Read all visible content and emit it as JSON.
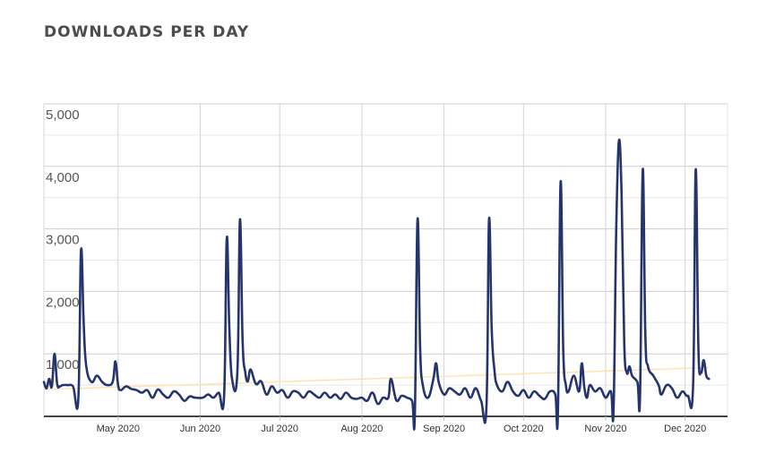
{
  "chart_data": {
    "type": "line",
    "title": "DOWNLOADS PER DAY",
    "xlabel": "",
    "ylabel": "",
    "ylim": [
      0,
      5000
    ],
    "yticks": [
      {
        "value": 1000,
        "label": "1,000"
      },
      {
        "value": 2000,
        "label": "2,000"
      },
      {
        "value": 3000,
        "label": "3,000"
      },
      {
        "value": 4000,
        "label": "4,000"
      },
      {
        "value": 5000,
        "label": "5,000"
      }
    ],
    "xrange": [
      "2020-04-03",
      "2020-12-17"
    ],
    "xticks": [
      {
        "date": "2020-05-01",
        "label": "May 2020"
      },
      {
        "date": "2020-06-01",
        "label": "Jun 2020"
      },
      {
        "date": "2020-07-01",
        "label": "Jul 2020"
      },
      {
        "date": "2020-08-01",
        "label": "Aug 2020"
      },
      {
        "date": "2020-09-01",
        "label": "Sep 2020"
      },
      {
        "date": "2020-10-01",
        "label": "Oct 2020"
      },
      {
        "date": "2020-11-01",
        "label": "Nov 2020"
      },
      {
        "date": "2020-12-01",
        "label": "Dec 2020"
      }
    ],
    "grid": true,
    "colors": {
      "series": "#26346e",
      "trend": "#fde3b0",
      "grid": "#d4d4d4",
      "axis": "#444444"
    },
    "series": [
      {
        "values": [
          [
            "2020-04-03",
            550
          ],
          [
            "2020-04-04",
            450
          ],
          [
            "2020-04-05",
            600
          ],
          [
            "2020-04-06",
            480
          ],
          [
            "2020-04-07",
            1000
          ],
          [
            "2020-04-08",
            520
          ],
          [
            "2020-04-09",
            480
          ],
          [
            "2020-04-10",
            500
          ],
          [
            "2020-04-12",
            500
          ],
          [
            "2020-04-14",
            480
          ],
          [
            "2020-04-16",
            280
          ],
          [
            "2020-04-17",
            2650
          ],
          [
            "2020-04-18",
            1500
          ],
          [
            "2020-04-19",
            800
          ],
          [
            "2020-04-21",
            550
          ],
          [
            "2020-04-23",
            650
          ],
          [
            "2020-04-25",
            550
          ],
          [
            "2020-04-27",
            500
          ],
          [
            "2020-04-29",
            560
          ],
          [
            "2020-04-30",
            880
          ],
          [
            "2020-05-01",
            500
          ],
          [
            "2020-05-02",
            420
          ],
          [
            "2020-05-04",
            480
          ],
          [
            "2020-05-06",
            440
          ],
          [
            "2020-05-08",
            420
          ],
          [
            "2020-05-10",
            380
          ],
          [
            "2020-05-12",
            420
          ],
          [
            "2020-05-14",
            300
          ],
          [
            "2020-05-16",
            430
          ],
          [
            "2020-05-18",
            350
          ],
          [
            "2020-05-20",
            300
          ],
          [
            "2020-05-22",
            400
          ],
          [
            "2020-05-24",
            350
          ],
          [
            "2020-05-26",
            250
          ],
          [
            "2020-05-28",
            320
          ],
          [
            "2020-05-30",
            300
          ],
          [
            "2020-06-02",
            300
          ],
          [
            "2020-06-04",
            350
          ],
          [
            "2020-06-06",
            300
          ],
          [
            "2020-06-08",
            380
          ],
          [
            "2020-06-10",
            320
          ],
          [
            "2020-06-11",
            2850
          ],
          [
            "2020-06-12",
            1400
          ],
          [
            "2020-06-13",
            600
          ],
          [
            "2020-06-15",
            700
          ],
          [
            "2020-06-16",
            3150
          ],
          [
            "2020-06-17",
            1200
          ],
          [
            "2020-06-18",
            700
          ],
          [
            "2020-06-19",
            560
          ],
          [
            "2020-06-20",
            750
          ],
          [
            "2020-06-22",
            520
          ],
          [
            "2020-06-24",
            560
          ],
          [
            "2020-06-26",
            350
          ],
          [
            "2020-06-28",
            480
          ],
          [
            "2020-06-30",
            380
          ],
          [
            "2020-07-02",
            420
          ],
          [
            "2020-07-04",
            300
          ],
          [
            "2020-07-06",
            400
          ],
          [
            "2020-07-08",
            380
          ],
          [
            "2020-07-10",
            300
          ],
          [
            "2020-07-12",
            400
          ],
          [
            "2020-07-14",
            350
          ],
          [
            "2020-07-16",
            300
          ],
          [
            "2020-07-18",
            380
          ],
          [
            "2020-07-20",
            300
          ],
          [
            "2020-07-22",
            350
          ],
          [
            "2020-07-24",
            280
          ],
          [
            "2020-07-26",
            380
          ],
          [
            "2020-07-28",
            300
          ],
          [
            "2020-07-30",
            280
          ],
          [
            "2020-08-01",
            300
          ],
          [
            "2020-08-03",
            250
          ],
          [
            "2020-08-05",
            380
          ],
          [
            "2020-08-07",
            200
          ],
          [
            "2020-08-09",
            300
          ],
          [
            "2020-08-11",
            300
          ],
          [
            "2020-08-12",
            600
          ],
          [
            "2020-08-14",
            260
          ],
          [
            "2020-08-16",
            330
          ],
          [
            "2020-08-18",
            300
          ],
          [
            "2020-08-20",
            240
          ],
          [
            "2020-08-21",
            10
          ],
          [
            "2020-08-22",
            3150
          ],
          [
            "2020-08-23",
            1100
          ],
          [
            "2020-08-24",
            500
          ],
          [
            "2020-08-26",
            300
          ],
          [
            "2020-08-28",
            600
          ],
          [
            "2020-08-29",
            850
          ],
          [
            "2020-08-30",
            550
          ],
          [
            "2020-09-01",
            350
          ],
          [
            "2020-09-03",
            450
          ],
          [
            "2020-09-05",
            400
          ],
          [
            "2020-09-07",
            350
          ],
          [
            "2020-09-09",
            450
          ],
          [
            "2020-09-11",
            300
          ],
          [
            "2020-09-13",
            450
          ],
          [
            "2020-09-15",
            250
          ],
          [
            "2020-09-17",
            140
          ],
          [
            "2020-09-18",
            3150
          ],
          [
            "2020-09-19",
            1400
          ],
          [
            "2020-09-20",
            750
          ],
          [
            "2020-09-21",
            500
          ],
          [
            "2020-09-23",
            400
          ],
          [
            "2020-09-25",
            550
          ],
          [
            "2020-09-27",
            400
          ],
          [
            "2020-09-29",
            330
          ],
          [
            "2020-10-01",
            420
          ],
          [
            "2020-10-03",
            300
          ],
          [
            "2020-10-05",
            400
          ],
          [
            "2020-10-07",
            330
          ],
          [
            "2020-10-09",
            280
          ],
          [
            "2020-10-11",
            400
          ],
          [
            "2020-10-13",
            350
          ],
          [
            "2020-10-14",
            50
          ],
          [
            "2020-10-15",
            3750
          ],
          [
            "2020-10-16",
            1100
          ],
          [
            "2020-10-17",
            500
          ],
          [
            "2020-10-18",
            400
          ],
          [
            "2020-10-20",
            650
          ],
          [
            "2020-10-22",
            400
          ],
          [
            "2020-10-23",
            850
          ],
          [
            "2020-10-24",
            450
          ],
          [
            "2020-10-25",
            300
          ],
          [
            "2020-10-26",
            500
          ],
          [
            "2020-10-28",
            400
          ],
          [
            "2020-10-30",
            450
          ],
          [
            "2020-11-01",
            300
          ],
          [
            "2020-11-03",
            400
          ],
          [
            "2020-11-04",
            100
          ],
          [
            "2020-11-05",
            3000
          ],
          [
            "2020-11-06",
            4400
          ],
          [
            "2020-11-07",
            3600
          ],
          [
            "2020-11-08",
            1200
          ],
          [
            "2020-11-09",
            700
          ],
          [
            "2020-11-10",
            800
          ],
          [
            "2020-11-11",
            650
          ],
          [
            "2020-11-13",
            550
          ],
          [
            "2020-11-14",
            350
          ],
          [
            "2020-11-15",
            3950
          ],
          [
            "2020-11-16",
            1300
          ],
          [
            "2020-11-17",
            800
          ],
          [
            "2020-11-19",
            650
          ],
          [
            "2020-11-21",
            500
          ],
          [
            "2020-11-22",
            350
          ],
          [
            "2020-11-24",
            500
          ],
          [
            "2020-11-26",
            450
          ],
          [
            "2020-11-28",
            300
          ],
          [
            "2020-11-30",
            400
          ],
          [
            "2020-12-02",
            330
          ],
          [
            "2020-12-04",
            500
          ],
          [
            "2020-12-05",
            3950
          ],
          [
            "2020-12-06",
            1100
          ],
          [
            "2020-12-07",
            700
          ],
          [
            "2020-12-08",
            900
          ],
          [
            "2020-12-09",
            650
          ],
          [
            "2020-12-10",
            600
          ]
        ]
      }
    ],
    "trendline": {
      "start": [
        "2020-04-03",
        430
      ],
      "end": [
        "2020-12-10",
        780
      ]
    }
  }
}
